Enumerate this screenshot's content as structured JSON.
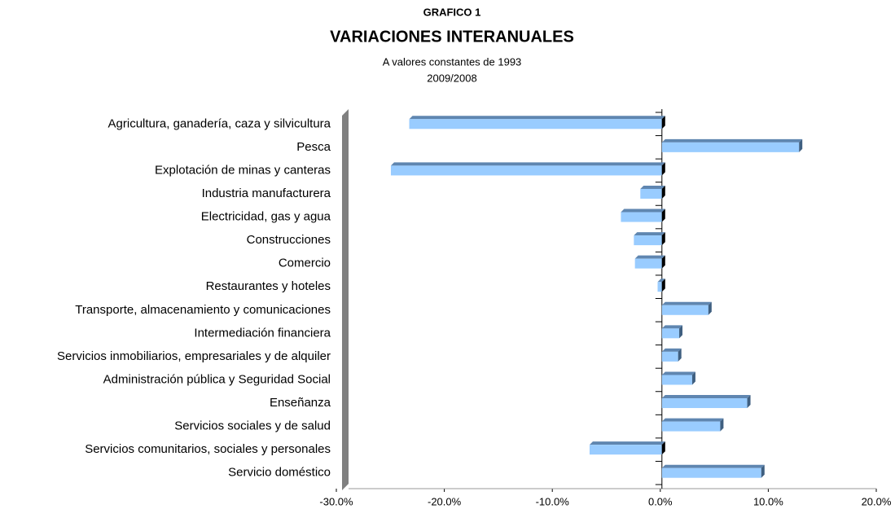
{
  "chart_data": {
    "type": "hbar",
    "title": "GRAFICO 1",
    "subtitle": "VARIACIONES INTERANUALES",
    "notes": [
      "A valores constantes de 1993",
      "2009/2008"
    ],
    "categories": [
      "Agricultura, ganadería, caza y silvicultura",
      "Pesca",
      "Explotación de minas y canteras",
      "Industria manufacturera",
      "Electricidad, gas y agua",
      "Construcciones",
      "Comercio",
      "Restaurantes y hoteles",
      "Transporte, almacenamiento y comunicaciones",
      "Intermediación financiera",
      "Servicios inmobiliarios, empresariales y de alquiler",
      "Administración pública y Seguridad Social",
      "Enseñanza",
      "Servicios sociales y de salud",
      "Servicios comunitarios, sociales y personales",
      "Servicio doméstico"
    ],
    "values": [
      -23.4,
      12.7,
      -25.1,
      -2.0,
      -3.8,
      -2.6,
      -2.5,
      -0.4,
      4.3,
      1.6,
      1.5,
      2.8,
      7.9,
      5.4,
      -6.7,
      9.2
    ],
    "color": "#99ccff",
    "xlim": [
      -30,
      20
    ],
    "xticks": [
      {
        "value": -30,
        "label": "-30.0%"
      },
      {
        "value": -20,
        "label": "-20.0%"
      },
      {
        "value": -10,
        "label": "-10.0%"
      },
      {
        "value": 0,
        "label": "0.0%"
      },
      {
        "value": 10,
        "label": "10.0%"
      },
      {
        "value": 20,
        "label": "20.0%"
      }
    ],
    "grid": false
  }
}
